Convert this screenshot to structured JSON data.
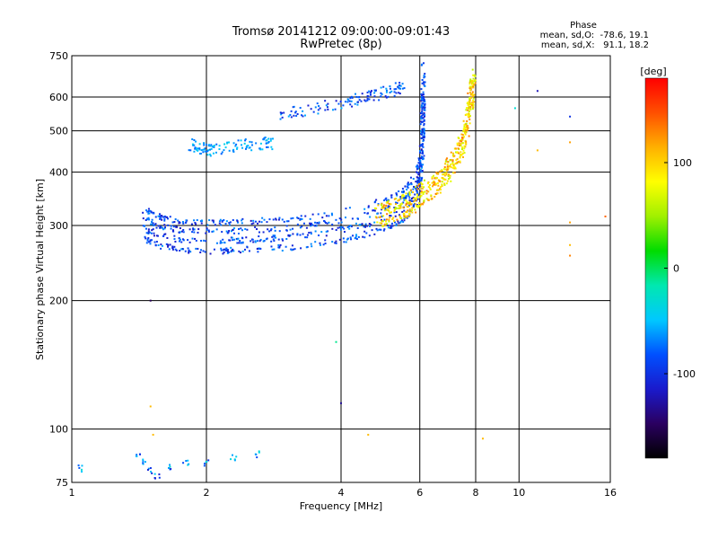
{
  "chart_data": {
    "type": "scatter",
    "title": "Tromsø 20141212 09:00:00-09:01:43",
    "subtitle": "RwPretec (8p)",
    "xlabel": "Frequency [MHz]",
    "ylabel": "Stationary phase Virtual Height [km]",
    "x_scale": "log",
    "y_scale": "log",
    "xlim": [
      1,
      16
    ],
    "ylim": [
      75,
      750
    ],
    "x_ticks": [
      "1",
      "2",
      "4",
      "6",
      "8",
      "10",
      "16"
    ],
    "x_tick_values": [
      1,
      2,
      4,
      6,
      8,
      10,
      16
    ],
    "y_ticks": [
      "75",
      "100",
      "200",
      "300",
      "400",
      "500",
      "600",
      "750"
    ],
    "y_tick_values": [
      75,
      100,
      200,
      300,
      400,
      500,
      600,
      750
    ],
    "grid": true,
    "phase_info": {
      "heading": "Phase",
      "line_o": "mean, sd,O:  -78.6, 19.1",
      "line_x": "mean, sd,X:   91.1, 18.2"
    },
    "colorbar": {
      "label": "[deg]",
      "range": [
        -180,
        180
      ],
      "ticks": [
        "100",
        "0",
        "-100"
      ],
      "tick_values": [
        100,
        0,
        -100
      ],
      "colors": [
        "#000000",
        "#2a0060",
        "#1a1acc",
        "#0050ff",
        "#00c8ff",
        "#00e8b0",
        "#00dc00",
        "#a0f000",
        "#ffff00",
        "#ffb000",
        "#ff5000",
        "#ff0000"
      ]
    },
    "o_trace": [
      [
        1.45,
        280
      ],
      [
        1.5,
        275
      ],
      [
        1.6,
        268
      ],
      [
        1.7,
        265
      ],
      [
        1.8,
        263
      ],
      [
        2.0,
        262
      ],
      [
        2.2,
        262
      ],
      [
        2.4,
        263
      ],
      [
        2.8,
        265
      ],
      [
        3.2,
        268
      ],
      [
        3.6,
        272
      ],
      [
        4.0,
        278
      ],
      [
        4.5,
        285
      ],
      [
        5.0,
        295
      ],
      [
        5.4,
        305
      ],
      [
        5.7,
        320
      ],
      [
        5.9,
        340
      ],
      [
        6.0,
        360
      ],
      [
        6.05,
        400
      ],
      [
        6.08,
        450
      ],
      [
        6.1,
        520
      ],
      [
        6.12,
        620
      ]
    ],
    "x_trace": [
      [
        4.8,
        300
      ],
      [
        5.2,
        310
      ],
      [
        5.6,
        320
      ],
      [
        6.0,
        335
      ],
      [
        6.4,
        350
      ],
      [
        6.8,
        370
      ],
      [
        7.1,
        395
      ],
      [
        7.4,
        430
      ],
      [
        7.6,
        470
      ],
      [
        7.75,
        520
      ],
      [
        7.85,
        580
      ],
      [
        7.9,
        640
      ]
    ],
    "f_layer_echo": [
      [
        2.9,
        540
      ],
      [
        3.2,
        548
      ],
      [
        3.6,
        560
      ],
      [
        4.0,
        572
      ],
      [
        4.4,
        585
      ],
      [
        4.8,
        600
      ],
      [
        5.2,
        612
      ],
      [
        5.5,
        622
      ]
    ],
    "multi_echo": [
      [
        1.85,
        455
      ],
      [
        1.95,
        448
      ],
      [
        2.05,
        442
      ],
      [
        2.2,
        448
      ],
      [
        2.4,
        455
      ],
      [
        2.6,
        458
      ],
      [
        2.8,
        460
      ]
    ],
    "low_echoes": [
      [
        1.05,
        81
      ],
      [
        1.4,
        86
      ],
      [
        1.45,
        84
      ],
      [
        1.5,
        80
      ],
      [
        1.55,
        78
      ],
      [
        1.65,
        82
      ],
      [
        1.8,
        84
      ],
      [
        2.0,
        83
      ],
      [
        2.3,
        86
      ],
      [
        2.6,
        87
      ]
    ],
    "outliers": [
      [
        1.5,
        200,
        -150
      ],
      [
        3.9,
        160,
        -10
      ],
      [
        4.0,
        115,
        -130
      ],
      [
        1.5,
        113,
        110
      ],
      [
        1.52,
        97,
        110
      ],
      [
        4.6,
        97,
        110
      ],
      [
        8.3,
        95,
        110
      ],
      [
        13,
        540,
        -100
      ],
      [
        13,
        470,
        120
      ],
      [
        13,
        305,
        120
      ],
      [
        13,
        270,
        110
      ],
      [
        13,
        255,
        130
      ],
      [
        11,
        620,
        -120
      ],
      [
        15.6,
        315,
        140
      ],
      [
        11,
        450,
        110
      ],
      [
        9.8,
        565,
        -30
      ]
    ]
  }
}
